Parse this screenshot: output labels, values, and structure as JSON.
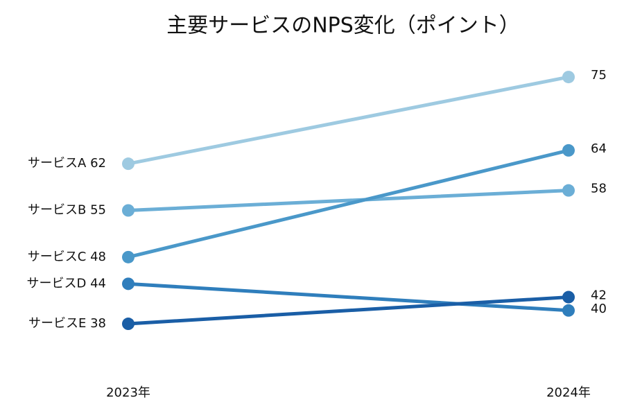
{
  "chart_data": {
    "type": "slope",
    "title": "主要サービスのNPS変化（ポイント）",
    "categories": [
      "2023年",
      "2024年"
    ],
    "series": [
      {
        "name": "サービスA",
        "color": "#9ecae1",
        "values": [
          62,
          75
        ]
      },
      {
        "name": "サービスB",
        "color": "#6baed6",
        "values": [
          55,
          58
        ]
      },
      {
        "name": "サービスC",
        "color": "#4a98c9",
        "values": [
          48,
          64
        ]
      },
      {
        "name": "サービスD",
        "color": "#2f7ebc",
        "values": [
          44,
          40
        ]
      },
      {
        "name": "サービスE",
        "color": "#1a5ea6",
        "values": [
          38,
          42
        ]
      }
    ],
    "ylim": [
      30,
      80
    ]
  }
}
